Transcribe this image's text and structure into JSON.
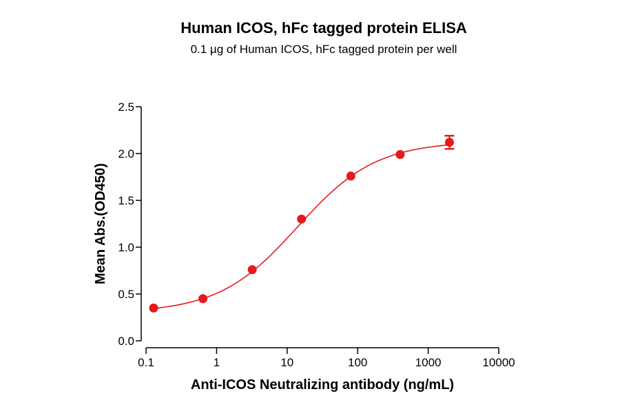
{
  "chart_data": {
    "type": "scatter",
    "title": "Human ICOS, hFc tagged protein ELISA",
    "subtitle": "0.1 µg of Human ICOS, hFc tagged protein per well",
    "xlabel": "Anti-ICOS Neutralizing antibody (ng/mL)",
    "ylabel": "Mean Abs.(OD450)",
    "x_scale": "log",
    "xlim": [
      0.1,
      10000
    ],
    "ylim": [
      0,
      2.5
    ],
    "x_ticks": [
      0.1,
      1,
      10,
      100,
      1000,
      10000
    ],
    "x_tick_labels": [
      "0.1",
      "1",
      "10",
      "100",
      "1000",
      "10000"
    ],
    "y_ticks": [
      0,
      0.5,
      1,
      1.5,
      2,
      2.5
    ],
    "y_tick_labels": [
      "0.0",
      "0.5",
      "1.0",
      "1.5",
      "2.0",
      "2.5"
    ],
    "grid": false,
    "legend": "none",
    "color": "#e41a1c",
    "points": [
      {
        "x": 0.128,
        "y": 0.35,
        "err": 0.02
      },
      {
        "x": 0.64,
        "y": 0.45,
        "err": 0.02
      },
      {
        "x": 3.2,
        "y": 0.76,
        "err": 0.02
      },
      {
        "x": 16,
        "y": 1.3,
        "err": 0.02
      },
      {
        "x": 80,
        "y": 1.76,
        "err": 0.02
      },
      {
        "x": 400,
        "y": 1.99,
        "err": 0.02
      },
      {
        "x": 2000,
        "y": 2.12,
        "err": 0.07
      }
    ],
    "fit": {
      "model": "4PL",
      "bottom": 0.3,
      "top": 2.13,
      "ec50": 14,
      "hill": 0.78
    }
  }
}
